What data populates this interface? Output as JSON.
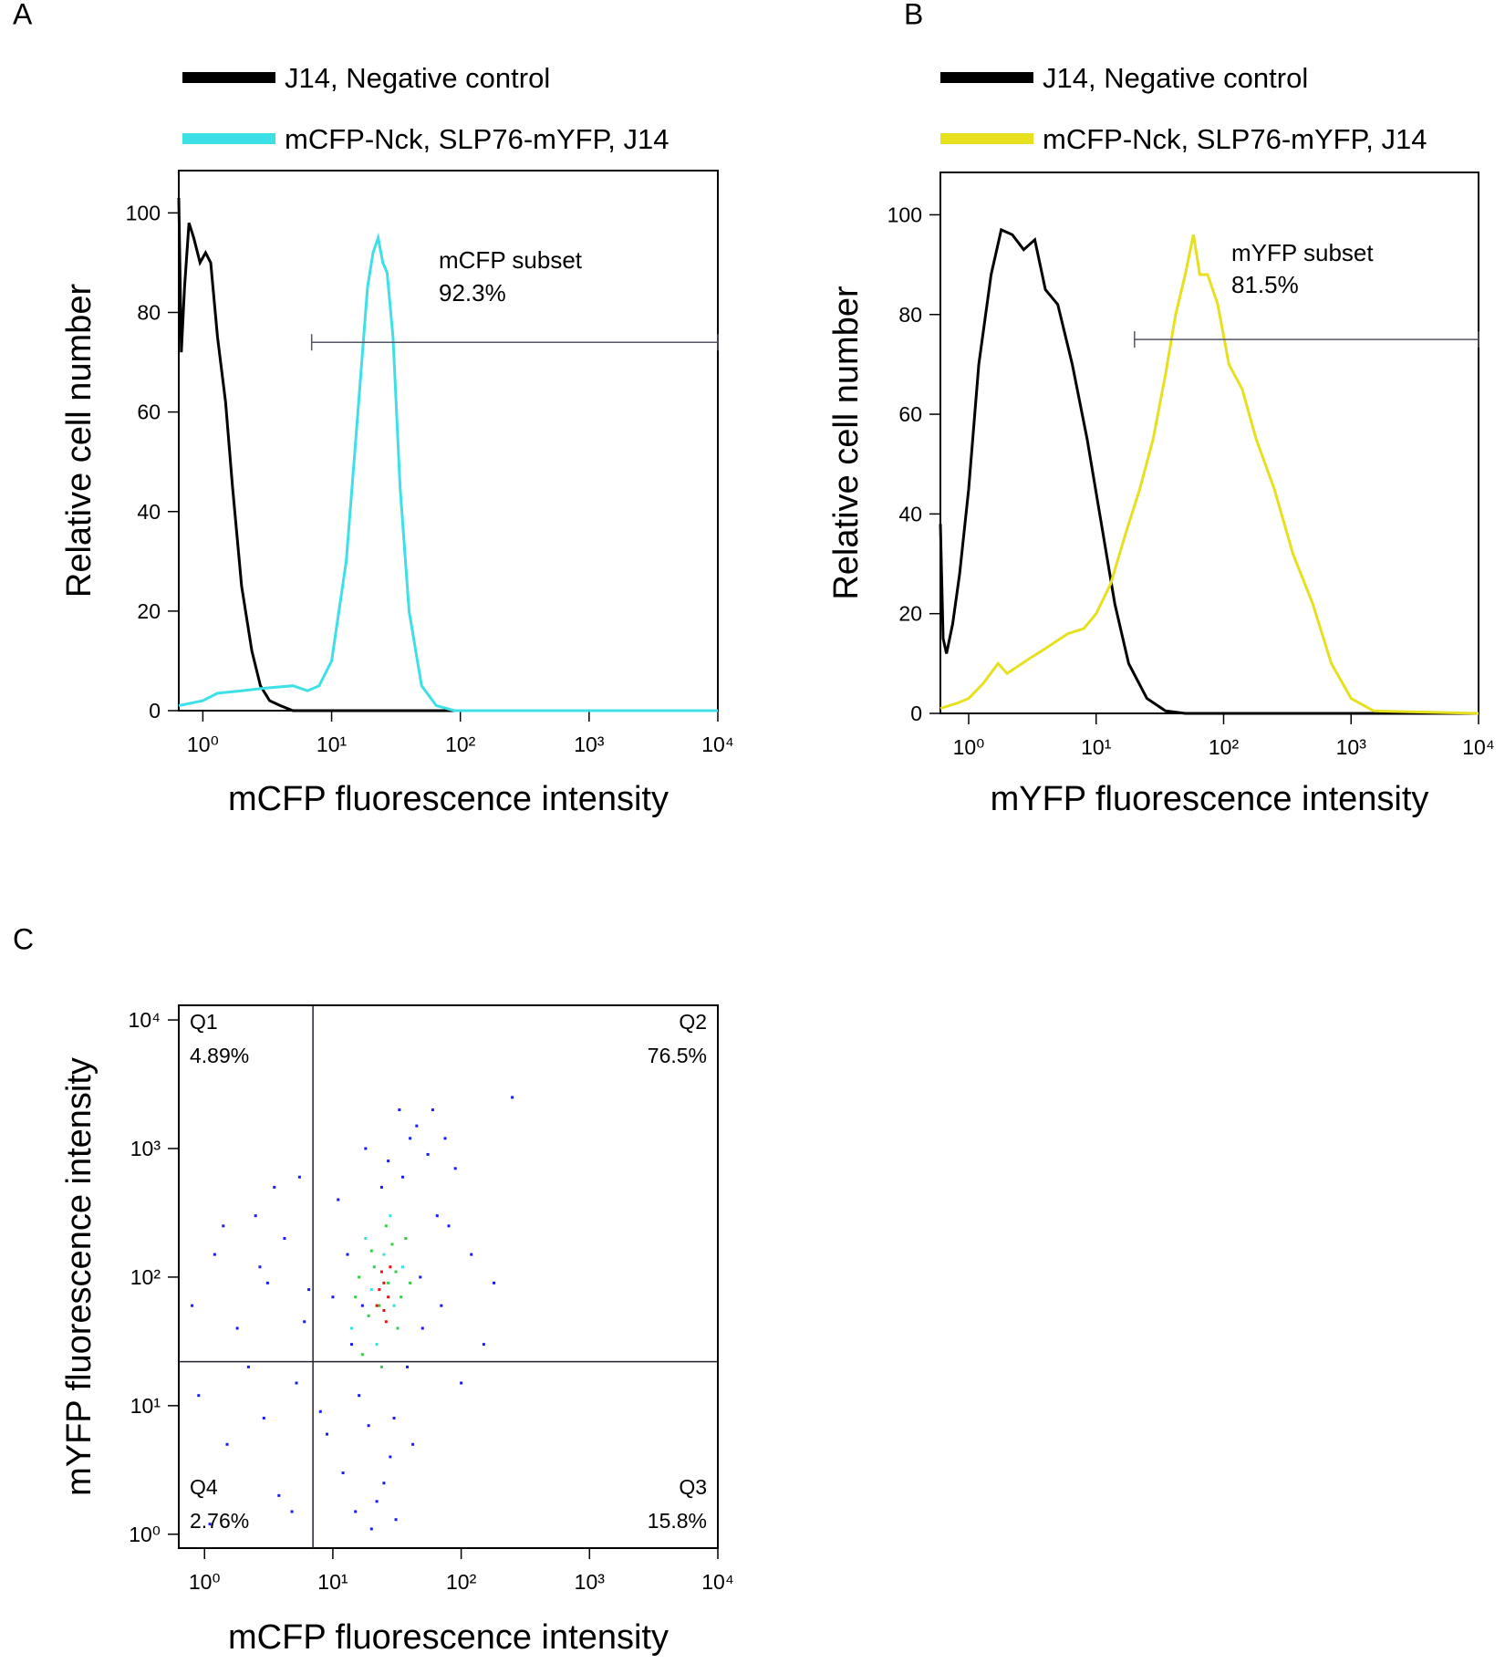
{
  "chart_data": [
    {
      "type": "line",
      "panel_label": "A",
      "xlabel": "mCFP fluorescence intensity",
      "ylabel": "Relative cell number",
      "log_x": true,
      "xlim": [
        0.65,
        10000
      ],
      "ylim": [
        0,
        108.5
      ],
      "xticks": [
        {
          "value": 1,
          "label": "10⁰"
        },
        {
          "value": 10,
          "label": "10¹"
        },
        {
          "value": 100,
          "label": "10²"
        },
        {
          "value": 1000,
          "label": "10³"
        },
        {
          "value": 10000,
          "label": "10⁴"
        }
      ],
      "yticks": [
        0,
        20,
        40,
        60,
        80,
        100
      ],
      "series": [
        {
          "name": "J14, Negative control",
          "color": "#000000",
          "x": [
            0.65,
            0.68,
            0.72,
            0.78,
            0.85,
            0.95,
            1.05,
            1.15,
            1.3,
            1.5,
            1.7,
            2.0,
            2.4,
            2.8,
            3.3,
            4,
            5,
            10000
          ],
          "values": [
            103,
            72,
            85,
            98,
            95,
            90,
            92,
            90,
            75,
            62,
            45,
            25,
            12,
            5,
            2,
            1,
            0,
            0
          ]
        },
        {
          "name": "mCFP-Nck, SLP76-mYFP, J14",
          "color": "#3ee0e8",
          "x": [
            0.65,
            1.0,
            1.3,
            2,
            3,
            5,
            6.5,
            8,
            10,
            13,
            16,
            19,
            21,
            23,
            25,
            27,
            30,
            34,
            40,
            50,
            65,
            90,
            10000
          ],
          "values": [
            1,
            2,
            3.5,
            4,
            4.5,
            5,
            4,
            5,
            10,
            30,
            60,
            85,
            92,
            95,
            90,
            88,
            75,
            45,
            20,
            5,
            1,
            0,
            0
          ]
        }
      ],
      "gate": {
        "x": [
          7,
          10000
        ],
        "y": 74
      },
      "annotations": [
        "mCFP subset",
        "92.3%"
      ]
    },
    {
      "type": "line",
      "panel_label": "B",
      "xlabel": "mYFP fluorescence intensity",
      "ylabel": "Relative cell number",
      "log_x": true,
      "xlim": [
        0.6,
        10000
      ],
      "ylim": [
        0,
        108.5
      ],
      "xticks": [
        {
          "value": 1,
          "label": "10⁰"
        },
        {
          "value": 10,
          "label": "10¹"
        },
        {
          "value": 100,
          "label": "10²"
        },
        {
          "value": 1000,
          "label": "10³"
        },
        {
          "value": 10000,
          "label": "10⁴"
        }
      ],
      "yticks": [
        0,
        20,
        40,
        60,
        80,
        100
      ],
      "series": [
        {
          "name": "J14, Negative control",
          "color": "#000000",
          "x": [
            0.6,
            0.63,
            0.67,
            0.75,
            0.85,
            1.0,
            1.2,
            1.5,
            1.8,
            2.2,
            2.7,
            3.3,
            4,
            5,
            6.5,
            8.5,
            11,
            14,
            18,
            25,
            35,
            50,
            10000
          ],
          "values": [
            38,
            15,
            12,
            18,
            28,
            45,
            70,
            88,
            97,
            96,
            93,
            95,
            85,
            82,
            70,
            55,
            38,
            22,
            10,
            3,
            0.5,
            0,
            0
          ]
        },
        {
          "name": "mCFP-Nck, SLP76-mYFP, J14",
          "color": "#e6e01e",
          "x": [
            0.6,
            0.8,
            1.0,
            1.3,
            1.7,
            2.0,
            3,
            4,
            6,
            8,
            10,
            13,
            17,
            22,
            28,
            35,
            42,
            50,
            58,
            65,
            75,
            90,
            110,
            140,
            180,
            250,
            350,
            500,
            700,
            1000,
            1500,
            10000
          ],
          "values": [
            1,
            2,
            3,
            6,
            10,
            8,
            11,
            13,
            16,
            17,
            20,
            26,
            36,
            45,
            55,
            68,
            80,
            88,
            96,
            88,
            88,
            82,
            70,
            65,
            55,
            45,
            32,
            22,
            10,
            3,
            0.5,
            0
          ]
        }
      ],
      "gate": {
        "x": [
          20,
          10000
        ],
        "y": 75
      },
      "annotations": [
        "mYFP subset",
        "81.5%"
      ]
    },
    {
      "type": "scatter",
      "panel_label": "C",
      "xlabel": "mCFP fluorescence intensity",
      "ylabel": "mYFP fluorescence intensity",
      "log_x": true,
      "log_y": true,
      "xlim": [
        0.63,
        10000
      ],
      "ylim": [
        0.78,
        13000
      ],
      "xticks": [
        {
          "value": 1,
          "label": "10⁰"
        },
        {
          "value": 10,
          "label": "10¹"
        },
        {
          "value": 100,
          "label": "10²"
        },
        {
          "value": 1000,
          "label": "10³"
        },
        {
          "value": 10000,
          "label": "10⁴"
        }
      ],
      "yticks": [
        {
          "value": 1,
          "label": "10⁰"
        },
        {
          "value": 10,
          "label": "10¹"
        },
        {
          "value": 100,
          "label": "10²"
        },
        {
          "value": 1000,
          "label": "10³"
        },
        {
          "value": 10000,
          "label": "10⁴"
        }
      ],
      "quadrant_lines": {
        "x": 7,
        "y": 22
      },
      "quadrant_labels": [
        [
          "Q1",
          "4.89%"
        ],
        [
          "Q2",
          "76.5%"
        ],
        [
          "Q3",
          "15.8%"
        ],
        [
          "Q4",
          "2.76%"
        ]
      ],
      "series": [
        {
          "color": "#1a1aff",
          "x": [
            1.2,
            2.5,
            3.1,
            1.8,
            0.9,
            4.2,
            5.5,
            2.2,
            1.5,
            3.8,
            6,
            0.8,
            2.9,
            4.8,
            1.1,
            5.2,
            3.5,
            1.4,
            2.7,
            6.5,
            12,
            15,
            20,
            9,
            25,
            30,
            14,
            35,
            45,
            60,
            55,
            80,
            70,
            40,
            100,
            120,
            250,
            180,
            11,
            18,
            22,
            28,
            16,
            50,
            65,
            13,
            38,
            27,
            33,
            90,
            8,
            10,
            42,
            19,
            24,
            150,
            31,
            17,
            48,
            75
          ],
          "values": [
            150,
            300,
            90,
            40,
            12,
            200,
            600,
            20,
            5,
            2,
            45,
            60,
            8,
            1.5,
            1.2,
            15,
            500,
            250,
            120,
            80,
            3,
            1.5,
            1.1,
            6,
            2.5,
            8,
            30,
            600,
            1500,
            2000,
            900,
            250,
            60,
            1200,
            15,
            150,
            2500,
            90,
            400,
            1000,
            1.8,
            4,
            12,
            40,
            300,
            150,
            20,
            800,
            2000,
            700,
            9,
            70,
            5,
            7,
            500,
            30,
            1.3,
            60,
            100,
            1200
          ]
        },
        {
          "color": "#33e0e0",
          "x": [
            14,
            20,
            25,
            30,
            18,
            22,
            35,
            28
          ],
          "values": [
            40,
            80,
            150,
            60,
            200,
            30,
            120,
            300
          ]
        },
        {
          "color": "#33cc44",
          "x": [
            16,
            24,
            40,
            19,
            26,
            32,
            21,
            29,
            15,
            37,
            23,
            27,
            17,
            34,
            31,
            20
          ],
          "values": [
            100,
            20,
            90,
            50,
            250,
            40,
            120,
            180,
            70,
            200,
            60,
            90,
            25,
            70,
            110,
            160
          ]
        },
        {
          "color": "#e81010",
          "x": [
            22,
            25,
            27,
            24,
            26,
            23,
            28,
            25
          ],
          "values": [
            60,
            90,
            70,
            110,
            45,
            80,
            120,
            55
          ]
        }
      ]
    }
  ]
}
